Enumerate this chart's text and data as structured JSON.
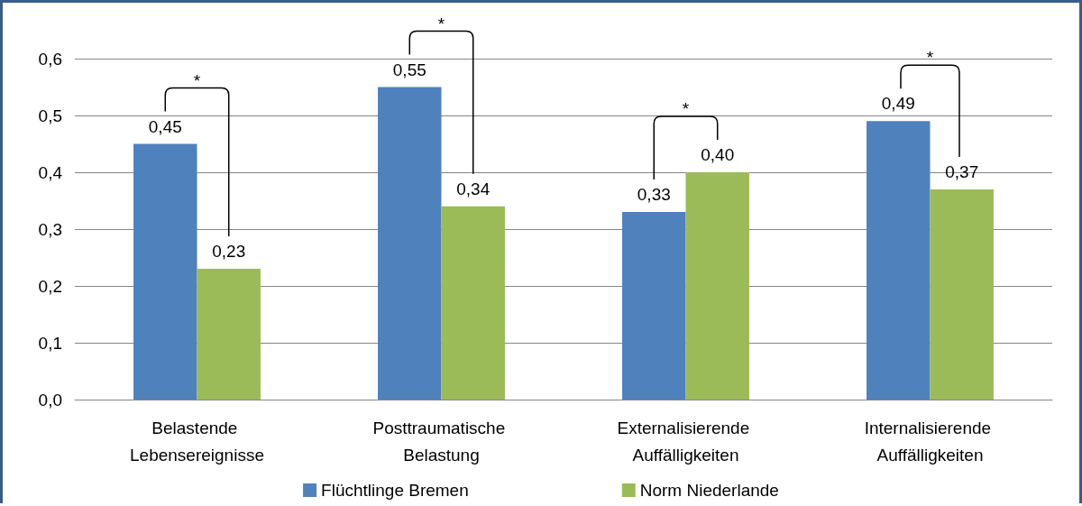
{
  "chart_data": {
    "type": "bar",
    "categories": [
      "Belastende Lebensereignisse",
      "Posttraumatische Belastung",
      "Externalisierende Auffälligkeiten",
      "Internalisierende Auffälligkeiten"
    ],
    "series": [
      {
        "name": "Flüchtlinge Bremen",
        "color": "#4f81bd",
        "values": [
          0.45,
          0.55,
          0.33,
          0.49
        ],
        "value_labels": [
          "0,45",
          "0,55",
          "0,33",
          "0,49"
        ]
      },
      {
        "name": "Norm Niederlande",
        "color": "#9bbb59",
        "values": [
          0.23,
          0.34,
          0.4,
          0.37
        ],
        "value_labels": [
          "0,23",
          "0,34",
          "0,40",
          "0,37"
        ]
      }
    ],
    "ylim": [
      0,
      0.6
    ],
    "yticks": [
      {
        "value": 0,
        "label": "0,0"
      },
      {
        "value": 0.1,
        "label": "0,1"
      },
      {
        "value": 0.2,
        "label": "0,2"
      },
      {
        "value": 0.3,
        "label": "0,3"
      },
      {
        "value": 0.4,
        "label": "0,4"
      },
      {
        "value": 0.5,
        "label": "0,5"
      },
      {
        "value": 0.6,
        "label": "0,6"
      }
    ],
    "grid": "y",
    "legend": "bottom",
    "annotations": [
      "*",
      "*",
      "*",
      "*"
    ]
  }
}
